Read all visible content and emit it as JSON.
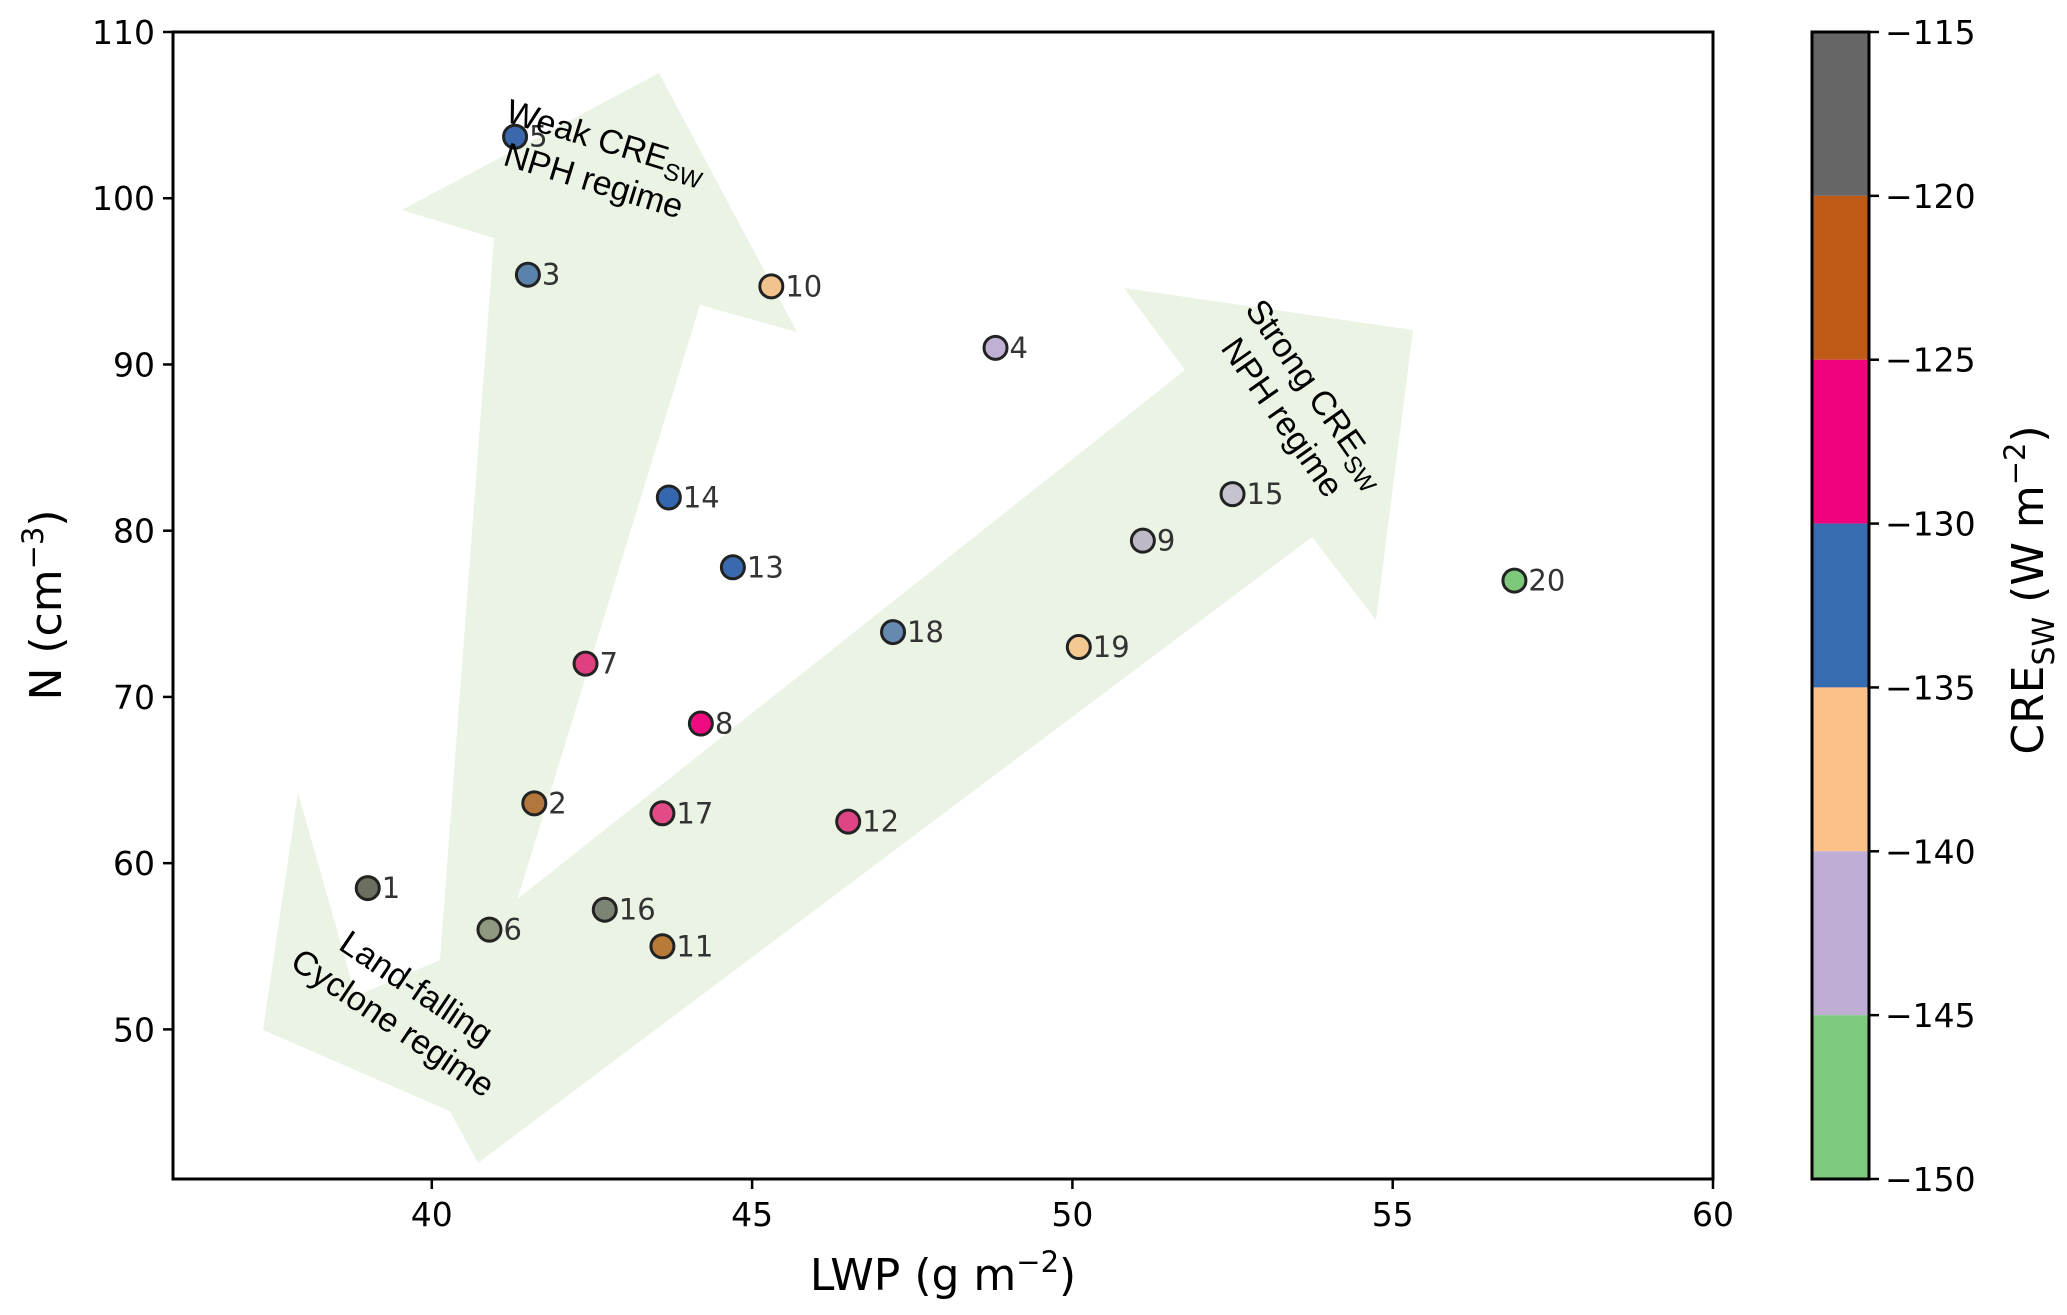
{
  "chart_data": {
    "type": "scatter",
    "xlabel": "LWP (g m",
    "xlabel_sup": "−2",
    "xlabel_end": ")",
    "ylabel": "N (cm",
    "ylabel_sup": "−3",
    "ylabel_end": ")",
    "xlim": [
      35.96,
      60
    ],
    "ylim": [
      41,
      110
    ],
    "xticks": [
      40,
      45,
      50,
      55,
      60
    ],
    "yticks": [
      50,
      60,
      70,
      80,
      90,
      100,
      110
    ],
    "grid": false,
    "points": [
      {
        "label": "1",
        "x": 39.0,
        "y": 58.5,
        "cre": -116.5,
        "color": "#6b6f5f"
      },
      {
        "label": "2",
        "x": 41.6,
        "y": 63.6,
        "cre": -123.5,
        "color": "#b3763d"
      },
      {
        "label": "3",
        "x": 41.5,
        "y": 95.4,
        "cre": -133,
        "color": "#5b82ab"
      },
      {
        "label": "4",
        "x": 48.8,
        "y": 91.0,
        "cre": -142,
        "color": "#bfb1d4"
      },
      {
        "label": "5",
        "x": 41.3,
        "y": 103.7,
        "cre": -133,
        "color": "#3b68ad"
      },
      {
        "label": "6",
        "x": 40.9,
        "y": 56.0,
        "cre": -116.5,
        "color": "#8f9880"
      },
      {
        "label": "7",
        "x": 42.4,
        "y": 72.0,
        "cre": -127.5,
        "color": "#e0407f"
      },
      {
        "label": "8",
        "x": 44.2,
        "y": 68.4,
        "cre": -127.5,
        "color": "#f00c80"
      },
      {
        "label": "9",
        "x": 51.1,
        "y": 79.4,
        "cre": -142,
        "color": "#bdbac6"
      },
      {
        "label": "10",
        "x": 45.3,
        "y": 94.7,
        "cre": -138,
        "color": "#f2c38c"
      },
      {
        "label": "11",
        "x": 43.6,
        "y": 55.0,
        "cre": -123.5,
        "color": "#b97a38"
      },
      {
        "label": "12",
        "x": 46.5,
        "y": 62.5,
        "cre": -127.5,
        "color": "#df4584"
      },
      {
        "label": "13",
        "x": 44.7,
        "y": 77.8,
        "cre": -133,
        "color": "#3a6aad"
      },
      {
        "label": "14",
        "x": 43.7,
        "y": 82.0,
        "cre": -133,
        "color": "#3567b0"
      },
      {
        "label": "15",
        "x": 52.5,
        "y": 82.2,
        "cre": -142,
        "color": "#c4c3ce"
      },
      {
        "label": "16",
        "x": 42.7,
        "y": 57.2,
        "cre": -116.5,
        "color": "#7c8474"
      },
      {
        "label": "17",
        "x": 43.6,
        "y": 63.0,
        "cre": -127.5,
        "color": "#e24b86"
      },
      {
        "label": "18",
        "x": 47.2,
        "y": 73.9,
        "cre": -133,
        "color": "#6689b2"
      },
      {
        "label": "19",
        "x": 50.1,
        "y": 73.0,
        "cre": -138,
        "color": "#f4c991"
      },
      {
        "label": "20",
        "x": 56.9,
        "y": 77.0,
        "cre": -147.5,
        "color": "#7ec87c"
      }
    ],
    "colorbar": {
      "label": "CRE",
      "label_sub": "SW",
      "label_units": "(W m",
      "label_sup": "−2",
      "label_end": ")",
      "range": [
        -150,
        -115
      ],
      "ticks": [
        "−115",
        "−120",
        "−125",
        "−130",
        "−135",
        "−140",
        "−145",
        "−150"
      ],
      "tick_values": [
        -115,
        -120,
        -125,
        -130,
        -135,
        -140,
        -145,
        -150
      ],
      "bands": [
        {
          "from": -120,
          "to": -115,
          "color": "#666666"
        },
        {
          "from": -125,
          "to": -120,
          "color": "#bf5b17"
        },
        {
          "from": -130,
          "to": -125,
          "color": "#f0027f"
        },
        {
          "from": -135,
          "to": -130,
          "color": "#386cb0"
        },
        {
          "from": -140,
          "to": -135,
          "color": "#fdc086"
        },
        {
          "from": -145,
          "to": -140,
          "color": "#beaed4"
        },
        {
          "from": -150,
          "to": -145,
          "color": "#7fc97f"
        }
      ]
    },
    "annotations": [
      {
        "id": "weak",
        "lines": [
          {
            "parts": [
              {
                "t": "Weak CRE"
              },
              {
                "t": "SW",
                "sub": true
              }
            ]
          },
          {
            "parts": [
              {
                "t": "NPH  regime"
              }
            ]
          }
        ]
      },
      {
        "id": "strong",
        "lines": [
          {
            "parts": [
              {
                "t": "Strong CRE"
              },
              {
                "t": "SW",
                "sub": true
              }
            ]
          },
          {
            "parts": [
              {
                "t": "NPH  regime"
              }
            ]
          }
        ]
      },
      {
        "id": "land",
        "lines": [
          {
            "parts": [
              {
                "t": "Land-falling"
              }
            ]
          },
          {
            "parts": [
              {
                "t": "Cyclone regime"
              }
            ]
          }
        ]
      }
    ],
    "arrow_color": "#eaf3e4"
  }
}
